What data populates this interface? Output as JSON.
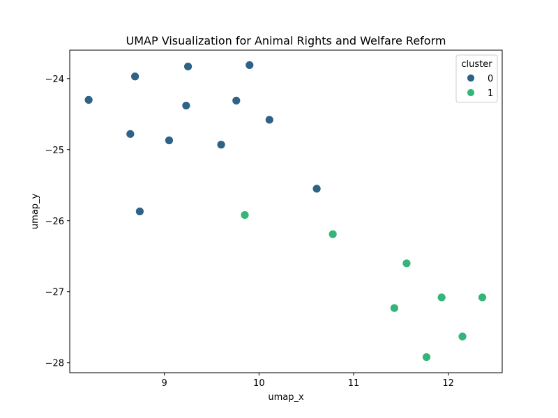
{
  "chart_data": {
    "type": "scatter",
    "title": "UMAP Visualization for Animal Rights and Welfare Reform",
    "xlabel": "umap_x",
    "ylabel": "umap_y",
    "xlim": [
      8.0,
      12.57
    ],
    "ylim": [
      -28.14,
      -23.6
    ],
    "xticks": [
      9,
      10,
      11,
      12
    ],
    "yticks": [
      -24,
      -25,
      -26,
      -27,
      -28
    ],
    "grid": false,
    "legend": {
      "title": "cluster",
      "placement": "top-right",
      "entries": [
        {
          "label": "0",
          "color": "#2e6286"
        },
        {
          "label": "1",
          "color": "#32b679"
        }
      ]
    },
    "series": [
      {
        "name": "0",
        "color": "#2e6286",
        "points": [
          [
            8.2,
            -24.3
          ],
          [
            8.69,
            -23.97
          ],
          [
            9.25,
            -23.83
          ],
          [
            9.9,
            -23.81
          ],
          [
            9.23,
            -24.38
          ],
          [
            9.76,
            -24.31
          ],
          [
            10.11,
            -24.58
          ],
          [
            8.64,
            -24.78
          ],
          [
            9.05,
            -24.87
          ],
          [
            9.6,
            -24.93
          ],
          [
            10.61,
            -25.55
          ],
          [
            8.74,
            -25.87
          ]
        ]
      },
      {
        "name": "1",
        "color": "#32b679",
        "points": [
          [
            9.85,
            -25.92
          ],
          [
            10.78,
            -26.19
          ],
          [
            11.56,
            -26.6
          ],
          [
            11.43,
            -27.23
          ],
          [
            11.93,
            -27.08
          ],
          [
            12.36,
            -27.08
          ],
          [
            12.15,
            -27.63
          ],
          [
            11.77,
            -27.92
          ]
        ]
      }
    ]
  }
}
